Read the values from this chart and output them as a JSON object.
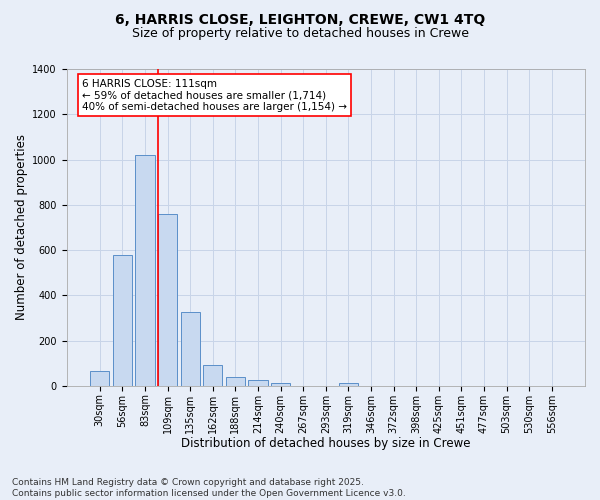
{
  "title_line1": "6, HARRIS CLOSE, LEIGHTON, CREWE, CW1 4TQ",
  "title_line2": "Size of property relative to detached houses in Crewe",
  "xlabel": "Distribution of detached houses by size in Crewe",
  "ylabel": "Number of detached properties",
  "categories": [
    "30sqm",
    "56sqm",
    "83sqm",
    "109sqm",
    "135sqm",
    "162sqm",
    "188sqm",
    "214sqm",
    "240sqm",
    "267sqm",
    "293sqm",
    "319sqm",
    "346sqm",
    "372sqm",
    "398sqm",
    "425sqm",
    "451sqm",
    "477sqm",
    "503sqm",
    "530sqm",
    "556sqm"
  ],
  "values": [
    65,
    578,
    1020,
    760,
    325,
    93,
    38,
    25,
    12,
    0,
    0,
    12,
    0,
    0,
    0,
    0,
    0,
    0,
    0,
    0,
    0
  ],
  "bar_color": "#c8d9f0",
  "bar_edge_color": "#5b8fc9",
  "grid_color": "#c8d4e8",
  "background_color": "#e8eef8",
  "vline_color": "red",
  "vline_x_index": 3,
  "annotation_text": "6 HARRIS CLOSE: 111sqm\n← 59% of detached houses are smaller (1,714)\n40% of semi-detached houses are larger (1,154) →",
  "annotation_box_color": "white",
  "annotation_box_edge": "red",
  "ylim": [
    0,
    1400
  ],
  "yticks": [
    0,
    200,
    400,
    600,
    800,
    1000,
    1200,
    1400
  ],
  "footer": "Contains HM Land Registry data © Crown copyright and database right 2025.\nContains public sector information licensed under the Open Government Licence v3.0.",
  "title_fontsize": 10,
  "subtitle_fontsize": 9,
  "axis_label_fontsize": 8.5,
  "tick_fontsize": 7,
  "footer_fontsize": 6.5,
  "annotation_fontsize": 7.5
}
